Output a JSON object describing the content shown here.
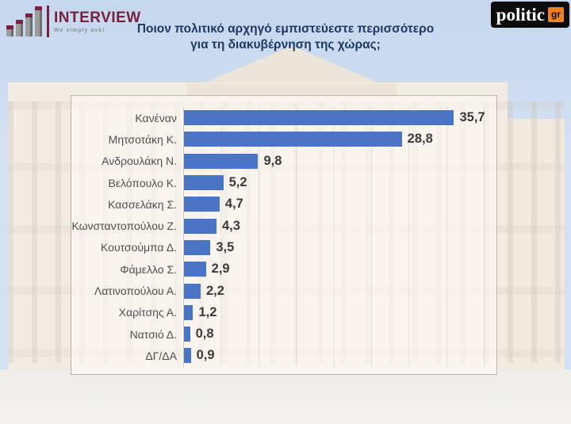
{
  "header": {
    "interview_logo": {
      "name": "INTERVIEW",
      "tagline": "We simply ask!"
    },
    "politic_logo": {
      "name": "politic",
      "suffix": "gr"
    },
    "title_line1": "Ποιον πολιτικό αρχηγό εμπιστεύεστε περισσότερο",
    "title_line2": "για τη διακυβέρνηση της χώρας;"
  },
  "colors": {
    "bar": "#4a74c4",
    "title": "#1f3864",
    "interview_maroon": "#77203f",
    "politic_orange": "#ee8222",
    "category_label": "#4f4f4f",
    "value_label": "#3b3b3b"
  },
  "chart_data": {
    "type": "bar",
    "orientation": "horizontal",
    "title": "Ποιον πολιτικό αρχηγό εμπιστεύεστε περισσότερο για τη διακυβέρνηση της χώρας;",
    "categories": [
      "Κανέναν",
      "Μητσοτάκη Κ.",
      "Ανδρουλάκη Ν.",
      "Βελόπουλο Κ.",
      "Κασσελάκη Σ.",
      "Κωνσταντοπούλου Ζ.",
      "Κουτσούμπα Δ.",
      "Φάμελλο Σ.",
      "Λατινοπούλου Α.",
      "Χαρίτσης Α.",
      "Νατσιό Δ.",
      "ΔΓ/ΔΑ"
    ],
    "values": [
      35.7,
      28.8,
      9.8,
      5.2,
      4.7,
      4.3,
      3.5,
      2.9,
      2.2,
      1.2,
      0.8,
      0.9
    ],
    "value_labels": [
      "35,7",
      "28,8",
      "9,8",
      "5,2",
      "4,7",
      "4,3",
      "3,5",
      "2,9",
      "2,2",
      "1,2",
      "0,8",
      "0,9"
    ],
    "xlim": [
      0,
      41.1
    ],
    "gridline_interval": 5,
    "grid": "vertical-faint",
    "legend": false,
    "bar_color": "#4a74c4"
  }
}
